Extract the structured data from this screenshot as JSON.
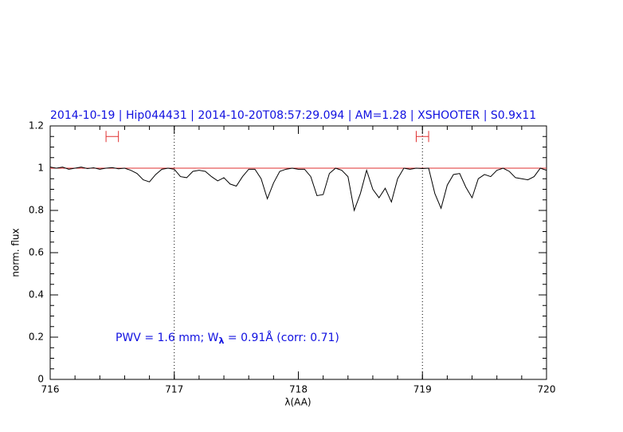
{
  "chart_data": {
    "type": "line",
    "title": "2014-10-19 | Hip044431 | 2014-10-20T08:57:29.094 | AM=1.28 | XSHOOTER | S0.9x11",
    "xlabel": "λ(AA)",
    "ylabel": "norm. flux",
    "annotation": [
      "PWV = 1.6 mm; W",
      "λ",
      " = 0.91Å (corr: 0.71)"
    ],
    "xlim": [
      716,
      720
    ],
    "ylim": [
      0,
      1.2
    ],
    "xticks": [
      716,
      717,
      718,
      719,
      720
    ],
    "yticks": [
      0,
      0.2,
      0.4,
      0.6,
      0.8,
      1,
      1.2
    ],
    "xminor": 0.2,
    "yminor": 0.05,
    "vlines": [
      717,
      719
    ],
    "hline": 1,
    "hline_color": "#e03030",
    "ranges": [
      [
        716.45,
        716.55
      ],
      [
        718.95,
        719.05
      ]
    ],
    "range_y": 1.15,
    "range_color": "#e03030",
    "series": [
      {
        "color": "#000000",
        "x": [
          716.0,
          716.05,
          716.1,
          716.15,
          716.2,
          716.25,
          716.3,
          716.35,
          716.4,
          716.45,
          716.5,
          716.55,
          716.6,
          716.65,
          716.7,
          716.75,
          716.8,
          716.85,
          716.9,
          716.95,
          717.0,
          717.05,
          717.1,
          717.15,
          717.2,
          717.25,
          717.3,
          717.35,
          717.4,
          717.45,
          717.5,
          717.55,
          717.6,
          717.65,
          717.7,
          717.75,
          717.8,
          717.85,
          717.9,
          717.95,
          718.0,
          718.05,
          718.1,
          718.15,
          718.2,
          718.25,
          718.3,
          718.35,
          718.4,
          718.45,
          718.5,
          718.55,
          718.6,
          718.65,
          718.7,
          718.75,
          718.8,
          718.85,
          718.9,
          718.95,
          719.0,
          719.05,
          719.1,
          719.15,
          719.2,
          719.25,
          719.3,
          719.35,
          719.4,
          719.45,
          719.5,
          719.55,
          719.6,
          719.65,
          719.7,
          719.75,
          719.8,
          719.85,
          719.9,
          719.95,
          720.0
        ],
        "values": [
          1.005,
          1.0,
          1.005,
          0.995,
          1.0,
          1.005,
          0.998,
          1.002,
          0.995,
          1.0,
          1.003,
          0.997,
          1.0,
          0.99,
          0.975,
          0.945,
          0.935,
          0.97,
          0.995,
          1.0,
          0.995,
          0.96,
          0.955,
          0.985,
          0.99,
          0.985,
          0.96,
          0.94,
          0.955,
          0.925,
          0.915,
          0.96,
          0.995,
          0.995,
          0.95,
          0.855,
          0.93,
          0.985,
          0.995,
          1.0,
          0.995,
          0.995,
          0.96,
          0.87,
          0.875,
          0.975,
          1.0,
          0.99,
          0.96,
          0.8,
          0.88,
          0.99,
          0.9,
          0.86,
          0.905,
          0.84,
          0.95,
          1.0,
          0.995,
          1.0,
          0.998,
          1.0,
          0.88,
          0.81,
          0.92,
          0.97,
          0.975,
          0.91,
          0.86,
          0.95,
          0.97,
          0.96,
          0.99,
          1.0,
          0.985,
          0.955,
          0.95,
          0.945,
          0.96,
          1.0,
          0.99
        ]
      }
    ]
  }
}
